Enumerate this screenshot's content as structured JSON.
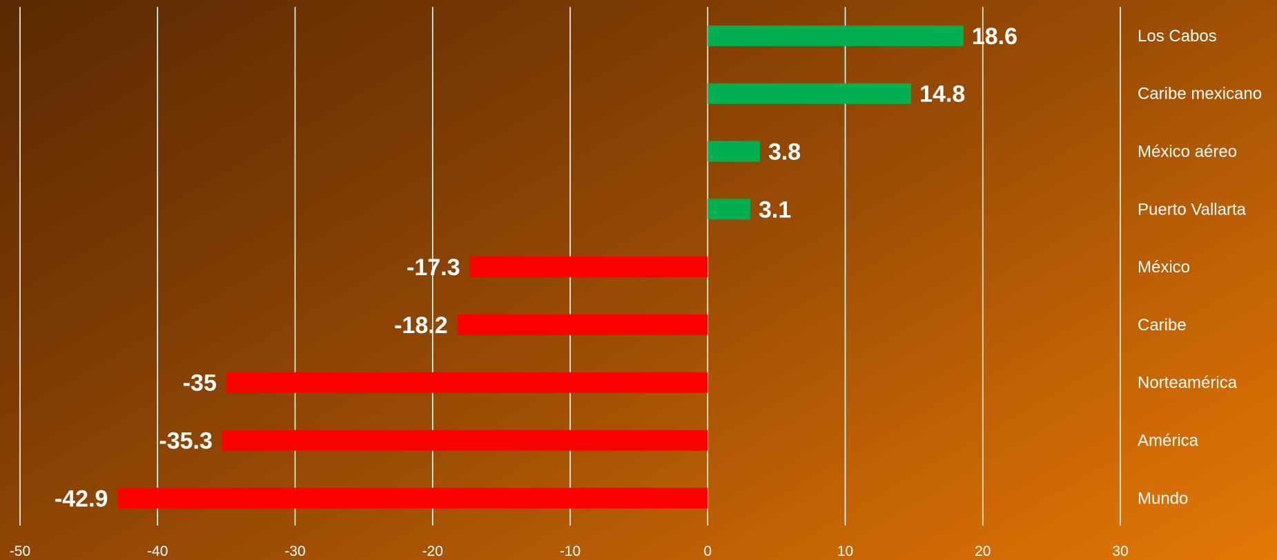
{
  "chart_data": {
    "type": "bar",
    "orientation": "horizontal",
    "title": "",
    "xlabel": "",
    "ylabel": "",
    "xlim": [
      -50,
      30
    ],
    "x_ticks": [
      -50,
      -40,
      -30,
      -20,
      -10,
      0,
      10,
      20,
      30
    ],
    "tick_labels": [
      "-50",
      "-40",
      "-30",
      "-20",
      "-10",
      "0",
      "10",
      "20",
      "30"
    ],
    "grid": true,
    "legend": "none",
    "categories": [
      "Los Cabos",
      "Caribe mexicano",
      "México aéreo",
      "Puerto Vallarta",
      "México",
      "Caribe",
      "Norteamérica",
      "América",
      "Mundo"
    ],
    "values": [
      18.6,
      14.8,
      3.8,
      3.1,
      -17.3,
      -18.2,
      -35,
      -35.3,
      -42.9
    ],
    "value_labels": [
      "18.6",
      "14.8",
      "3.8",
      "3.1",
      "-17.3",
      "-18.2",
      "-35",
      "-35.3",
      "-42.9"
    ],
    "colors": {
      "positive": "#00b050",
      "negative": "#ff0000",
      "text": "#ffffff",
      "grid": "#ffffff"
    }
  }
}
